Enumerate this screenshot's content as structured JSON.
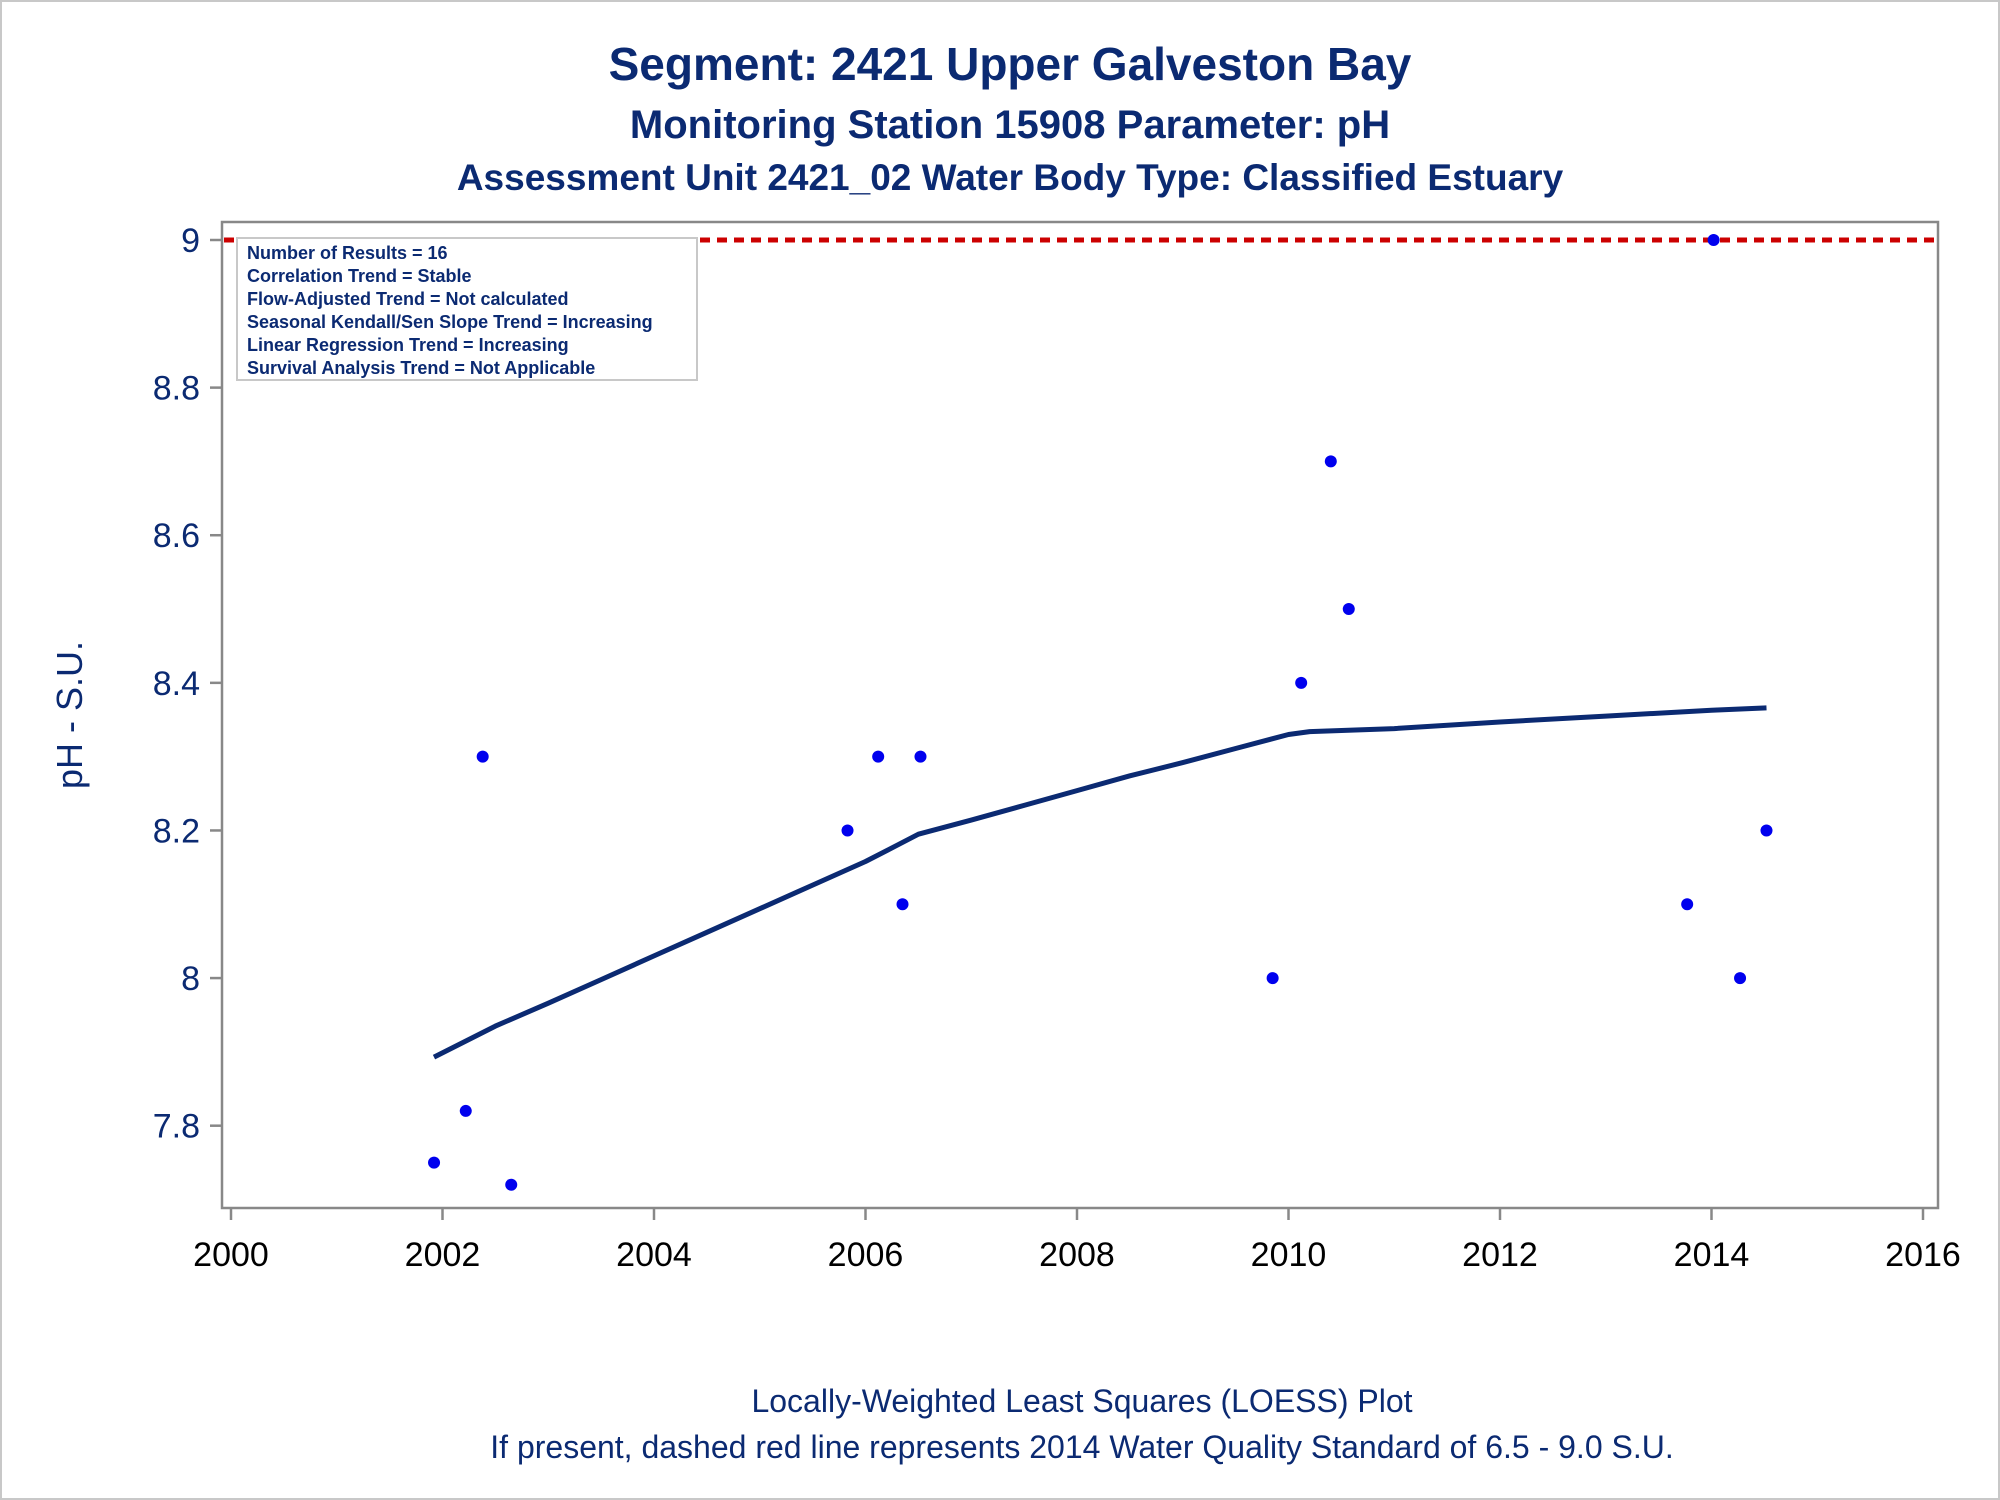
{
  "chart_data": {
    "type": "scatter",
    "title": "Segment: 2421  Upper Galveston Bay",
    "subtitle": "Monitoring Station 15908 Parameter: pH",
    "subtitle2": "Assessment Unit 2421_02   Water Body Type: Classified Estuary",
    "ylabel": "pH - S.U.",
    "xlabel": "",
    "xlim": [
      2000,
      2016
    ],
    "ylim": [
      7.7,
      9.0
    ],
    "x_ticks": [
      "2000",
      "2002",
      "2004",
      "2006",
      "2008",
      "2010",
      "2012",
      "2014",
      "2016"
    ],
    "y_ticks": [
      "7.8",
      "8",
      "8.2",
      "8.4",
      "8.6",
      "8.8",
      "9"
    ],
    "grid": false,
    "points": [
      {
        "x": 2001.92,
        "y": 7.75
      },
      {
        "x": 2002.22,
        "y": 7.82
      },
      {
        "x": 2002.38,
        "y": 8.3
      },
      {
        "x": 2002.65,
        "y": 7.72
      },
      {
        "x": 2005.83,
        "y": 8.2
      },
      {
        "x": 2006.12,
        "y": 8.3
      },
      {
        "x": 2006.35,
        "y": 8.1
      },
      {
        "x": 2006.52,
        "y": 8.3
      },
      {
        "x": 2009.85,
        "y": 8.0
      },
      {
        "x": 2010.12,
        "y": 8.4
      },
      {
        "x": 2010.4,
        "y": 8.7
      },
      {
        "x": 2010.57,
        "y": 8.5
      },
      {
        "x": 2013.77,
        "y": 8.1
      },
      {
        "x": 2014.02,
        "y": 9.0
      },
      {
        "x": 2014.27,
        "y": 8.0
      },
      {
        "x": 2014.52,
        "y": 8.2
      }
    ],
    "loess": [
      {
        "x": 2001.92,
        "y": 7.893
      },
      {
        "x": 2002.5,
        "y": 7.935
      },
      {
        "x": 2003.0,
        "y": 7.966
      },
      {
        "x": 2003.5,
        "y": 7.998
      },
      {
        "x": 2004.0,
        "y": 8.03
      },
      {
        "x": 2004.5,
        "y": 8.062
      },
      {
        "x": 2005.0,
        "y": 8.094
      },
      {
        "x": 2005.5,
        "y": 8.126
      },
      {
        "x": 2006.0,
        "y": 8.158
      },
      {
        "x": 2006.3,
        "y": 8.18
      },
      {
        "x": 2006.5,
        "y": 8.195
      },
      {
        "x": 2007.0,
        "y": 8.214
      },
      {
        "x": 2007.5,
        "y": 8.234
      },
      {
        "x": 2008.0,
        "y": 8.254
      },
      {
        "x": 2008.5,
        "y": 8.274
      },
      {
        "x": 2009.0,
        "y": 8.292
      },
      {
        "x": 2009.5,
        "y": 8.311
      },
      {
        "x": 2010.0,
        "y": 8.33
      },
      {
        "x": 2010.2,
        "y": 8.334
      },
      {
        "x": 2011.0,
        "y": 8.338
      },
      {
        "x": 2012.0,
        "y": 8.347
      },
      {
        "x": 2013.0,
        "y": 8.355
      },
      {
        "x": 2014.0,
        "y": 8.363
      },
      {
        "x": 2014.52,
        "y": 8.366
      }
    ],
    "reference_line": {
      "y": 9.0,
      "style": "dashed",
      "color": "#cc0000"
    },
    "colors": {
      "points": "#0000ee",
      "loess": "#0b2a72",
      "text": "#0b2a72",
      "axis": "#888888"
    },
    "stats_box": [
      "Number of Results = 16",
      "Correlation Trend = Stable",
      "Flow-Adjusted Trend = Not calculated",
      "Seasonal Kendall/Sen Slope Trend = Increasing",
      "Linear Regression Trend = Increasing",
      "Survival Analysis Trend = Not Applicable"
    ],
    "footnote1": "Locally-Weighted Least Squares (LOESS) Plot",
    "footnote2": "If present, dashed red line represents 2014 Water Quality Standard of 6.5 - 9.0 S.U."
  }
}
